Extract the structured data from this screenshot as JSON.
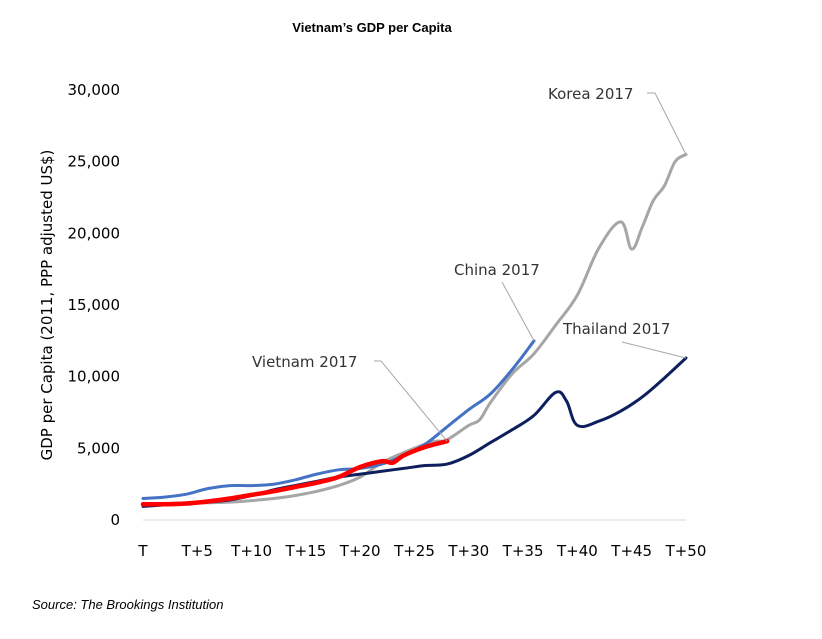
{
  "chart_data": {
    "type": "line",
    "title": "Vietnam’s GDP per Capita",
    "xlabel": "",
    "ylabel": "GDP per Capita (2011, PPP adjusted US$)",
    "ylim": [
      0,
      30000
    ],
    "xlim": [
      0,
      50
    ],
    "grid": false,
    "legend": "none",
    "y_ticks": [
      0,
      5000,
      10000,
      15000,
      20000,
      25000,
      30000
    ],
    "y_tick_labels": [
      "0",
      "5,000",
      "10,000",
      "15,000",
      "20,000",
      "25,000",
      "30,000"
    ],
    "x_ticks": [
      0,
      5,
      10,
      15,
      20,
      25,
      30,
      35,
      40,
      45,
      50
    ],
    "x_tick_labels": [
      "T",
      "T+5",
      "T+10",
      "T+15",
      "T+20",
      "T+25",
      "T+30",
      "T+35",
      "T+40",
      "T+45",
      "T+50"
    ],
    "series": [
      {
        "name": "Korea 2017",
        "color": "#A6A6A6",
        "x": [
          0,
          2,
          4,
          6,
          8,
          10,
          12,
          14,
          16,
          18,
          20,
          22,
          24,
          26,
          27,
          28,
          30,
          31,
          32,
          34,
          36,
          38,
          40,
          42,
          44,
          45,
          46,
          47,
          48,
          49,
          50
        ],
        "y": [
          1050,
          1100,
          1150,
          1200,
          1250,
          1350,
          1500,
          1700,
          2000,
          2400,
          3000,
          4000,
          4700,
          5300,
          5500,
          5600,
          6600,
          7000,
          8200,
          10200,
          11600,
          13600,
          15700,
          19000,
          20800,
          18900,
          20500,
          22300,
          23300,
          25000,
          25500
        ]
      },
      {
        "name": "China 2017",
        "color": "#4472C4",
        "x": [
          0,
          2,
          4,
          6,
          8,
          10,
          12,
          14,
          16,
          18,
          20,
          22,
          24,
          26,
          28,
          30,
          32,
          34,
          36
        ],
        "y": [
          1500,
          1600,
          1800,
          2200,
          2400,
          2400,
          2500,
          2800,
          3200,
          3500,
          3600,
          3900,
          4500,
          5300,
          6500,
          7700,
          8800,
          10500,
          12500
        ]
      },
      {
        "name": "Thailand 2017",
        "color": "#0D1F5C",
        "x": [
          0,
          2,
          4,
          6,
          8,
          10,
          12,
          14,
          16,
          18,
          20,
          22,
          24,
          26,
          28,
          30,
          32,
          34,
          36,
          38,
          39,
          40,
          42,
          44,
          46,
          48,
          50
        ],
        "y": [
          950,
          1050,
          1150,
          1250,
          1400,
          1700,
          2100,
          2400,
          2700,
          3000,
          3200,
          3400,
          3600,
          3800,
          3900,
          4500,
          5400,
          6300,
          7300,
          8900,
          8300,
          6600,
          6900,
          7600,
          8600,
          9900,
          11300
        ]
      },
      {
        "name": "Vietnam 2017",
        "color": "#FF0000",
        "x": [
          0,
          2,
          4,
          6,
          8,
          10,
          12,
          14,
          16,
          18,
          20,
          22,
          23,
          24,
          26,
          28
        ],
        "y": [
          1100,
          1100,
          1150,
          1300,
          1500,
          1750,
          2000,
          2300,
          2600,
          3000,
          3700,
          4100,
          4000,
          4500,
          5100,
          5500
        ]
      }
    ],
    "annotations": [
      {
        "text": "Korea 2017",
        "series": "Korea 2017"
      },
      {
        "text": "China 2017",
        "series": "China 2017"
      },
      {
        "text": "Thailand 2017",
        "series": "Thailand 2017"
      },
      {
        "text": "Vietnam 2017",
        "series": "Vietnam 2017"
      }
    ]
  },
  "source": "Source: The Brookings Institution"
}
